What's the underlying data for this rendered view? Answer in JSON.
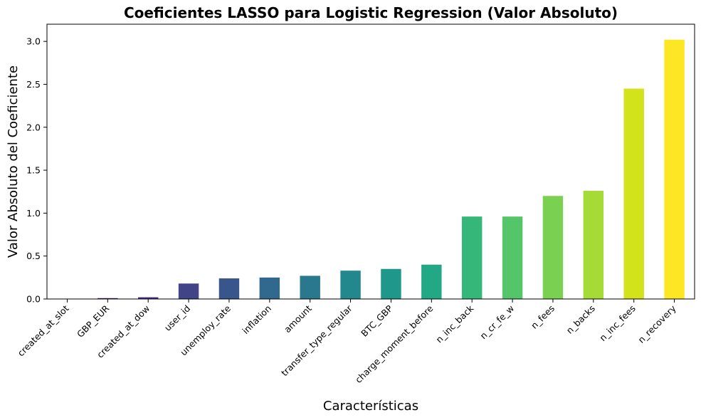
{
  "chart_data": {
    "type": "bar",
    "title": "Coeficientes LASSO para Logistic Regression (Valor Absoluto)",
    "xlabel": "Características",
    "ylabel": "Valor Absoluto del Coeficiente",
    "categories": [
      "created_at_slot",
      "GBP_EUR",
      "created_at_dow",
      "user_id",
      "unemploy_rate",
      "inflation",
      "amount",
      "transfer_type_regular",
      "BTC_GBP",
      "charge_moment_before",
      "n_inc_back",
      "n_cr_fe_w",
      "n_fees",
      "n_backs",
      "n_inc_fees",
      "n_recovery"
    ],
    "values": [
      0.0,
      0.01,
      0.02,
      0.18,
      0.24,
      0.25,
      0.27,
      0.33,
      0.35,
      0.4,
      0.96,
      0.96,
      1.2,
      1.26,
      2.45,
      3.02
    ],
    "colors": [
      "#440154",
      "#481a6c",
      "#472f7d",
      "#414487",
      "#39568c",
      "#31688e",
      "#2a788e",
      "#23888e",
      "#1f988b",
      "#22a884",
      "#35b779",
      "#54c568",
      "#7ad151",
      "#a5db36",
      "#d2e21b",
      "#fde725"
    ],
    "ylim": [
      0,
      3.2
    ],
    "yticks": [
      0.0,
      0.5,
      1.0,
      1.5,
      2.0,
      2.5,
      3.0
    ],
    "ytick_labels": [
      "0.0",
      "0.5",
      "1.0",
      "1.5",
      "2.0",
      "2.5",
      "3.0"
    ],
    "grid": false,
    "legend": "none"
  }
}
